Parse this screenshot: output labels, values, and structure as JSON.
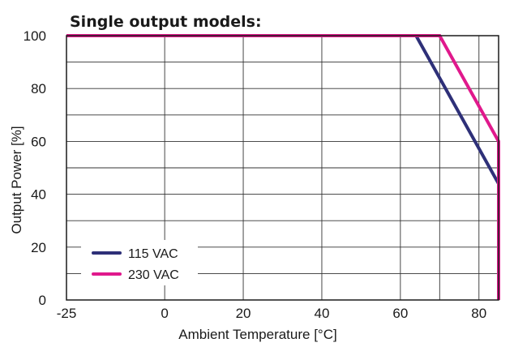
{
  "chart_data": {
    "type": "line",
    "title": "Single output models:",
    "xlabel": "Ambient Temperature [°C]",
    "ylabel": "Output Power [%]",
    "xlim": [
      -25,
      85
    ],
    "ylim": [
      0,
      100
    ],
    "x_ticks": [
      -25,
      0,
      20,
      40,
      60,
      80
    ],
    "x_tick_labels": [
      "-25",
      "0",
      "20",
      "40",
      "60",
      "80"
    ],
    "x_grid": [
      -25,
      0,
      20,
      40,
      60,
      70,
      80,
      85
    ],
    "y_ticks": [
      0,
      20,
      40,
      60,
      80,
      100
    ],
    "y_tick_labels": [
      "0",
      "20",
      "40",
      "60",
      "80",
      "100"
    ],
    "y_grid": [
      0,
      10,
      20,
      30,
      40,
      50,
      60,
      70,
      80,
      90,
      100
    ],
    "grid": true,
    "legend_position": "bottom-left",
    "series": [
      {
        "name": "115 VAC",
        "color": "#2e3078",
        "points": [
          [
            -25,
            100
          ],
          [
            64,
            100
          ],
          [
            85,
            44
          ],
          [
            85,
            0
          ]
        ]
      },
      {
        "name": "230 VAC",
        "color": "#e0198c",
        "points": [
          [
            -25,
            100
          ],
          [
            70,
            100
          ],
          [
            85,
            60
          ],
          [
            85,
            0
          ]
        ]
      }
    ]
  }
}
